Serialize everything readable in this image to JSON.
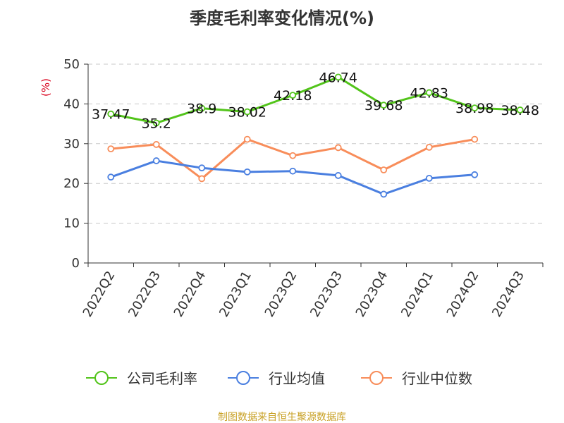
{
  "title": "季度毛利率变化情况(%)",
  "source": "制图数据来自恒生聚源数据库",
  "colors": {
    "company": "#52c41a",
    "industry_avg": "#4a7fe0",
    "industry_median": "#f88d5a",
    "unit_label": "#d9001b",
    "source_text": "#c9a227"
  },
  "chart_data": {
    "type": "line",
    "title": "季度毛利率变化情况(%)",
    "xlabel": "",
    "ylabel": "(%)",
    "ylim": [
      0,
      50
    ],
    "yticks": [
      0,
      10,
      20,
      30,
      40,
      50
    ],
    "grid": true,
    "legend_position": "bottom",
    "categories": [
      "2022Q2",
      "2022Q3",
      "2022Q4",
      "2023Q1",
      "2023Q2",
      "2023Q3",
      "2023Q4",
      "2024Q1",
      "2024Q2",
      "2024Q3"
    ],
    "series": [
      {
        "name": "公司毛利率",
        "color": "#52c41a",
        "values": [
          37.47,
          35.2,
          38.9,
          38.02,
          42.18,
          46.74,
          39.68,
          42.83,
          38.98,
          38.48
        ],
        "labels": [
          "37.47",
          "35.2",
          "38.9",
          "38.02",
          "42.18",
          "46.74",
          "39.68",
          "42.83",
          "38.98",
          "38.48"
        ]
      },
      {
        "name": "行业均值",
        "color": "#4a7fe0",
        "values": [
          21.6,
          25.7,
          23.9,
          22.9,
          23.1,
          22.0,
          17.3,
          21.3,
          22.2,
          null
        ]
      },
      {
        "name": "行业中位数",
        "color": "#f88d5a",
        "values": [
          28.7,
          29.8,
          21.2,
          31.1,
          27.0,
          29.0,
          23.4,
          29.1,
          31.1,
          null
        ]
      }
    ]
  }
}
